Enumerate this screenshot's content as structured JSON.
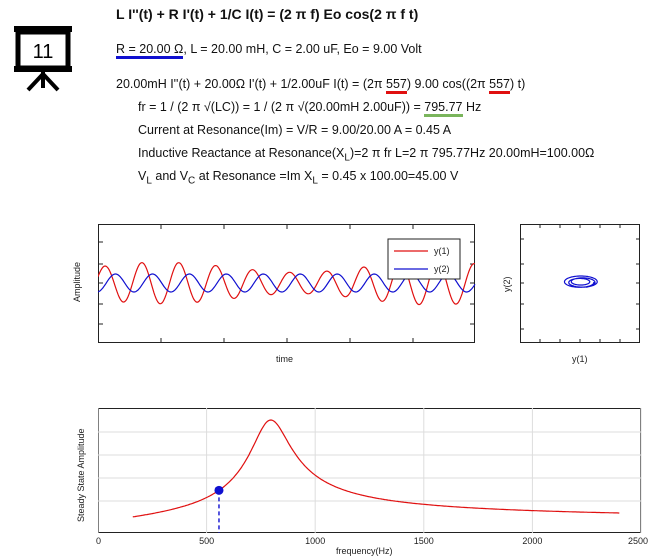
{
  "badge": {
    "number": "11",
    "icon": "presentation-board-icon"
  },
  "equation": {
    "title": "L I''(t) + R I'(t) + 1/C I(t) = (2 π f) Eo cos(2 π f t)",
    "params_underlined": "R = 20.00 Ω",
    "params_rest": ", L = 20.00 mH, C = 2.00 uF, Eo = 9.00 Volt",
    "ode_part1": "20.00mH I''(t) + 20.00Ω I'(t) + 1/2.00uF I(t) = (2π ",
    "ode_freq1": "557",
    "ode_part2": ") 9.00 cos((2π ",
    "ode_freq2": "557",
    "ode_part3": ") t)",
    "resonance_part1": "fr = 1 / (2 π √(LC)) = 1 / (2 π √(20.00mH 2.00uF)) = ",
    "resonance_value": "795.77",
    "resonance_unit": " Hz",
    "current_line": "Current at Resonance(Im) = V/R = 9.00/20.00 A = 0.45 A",
    "reactance_part1": "Inductive Reactance at Resonance(X",
    "reactance_sub": "L",
    "reactance_part2": ")=2 π fr L=2 π 795.77Hz 20.00mH=100.00Ω",
    "voltage_v": "V",
    "voltage_sub_l": "L",
    "voltage_and": " and V",
    "voltage_sub_c": "C",
    "voltage_mid": " at Resonance =Im X",
    "voltage_sub_l2": "L",
    "voltage_end": " = 0.45 x 100.00=45.00 V"
  },
  "colors": {
    "red": "#e01010",
    "blue": "#1010d0",
    "green": "#7ab55c"
  },
  "chart_data": [
    {
      "type": "line",
      "xlabel": "time",
      "ylabel": "Amplitude",
      "grid": false,
      "legend_placement": "top-right",
      "series": [
        {
          "name": "y(1)",
          "color": "#e01010"
        },
        {
          "name": "y(2)",
          "color": "#1010d0"
        }
      ]
    },
    {
      "type": "line",
      "xlabel": "y(1)",
      "ylabel": "y(2)",
      "grid": false
    },
    {
      "type": "line",
      "xlabel": "frequency(Hz)",
      "ylabel": "Steady State Amplitude",
      "grid": true,
      "x_ticks": [
        0,
        500,
        1000,
        1500,
        2000,
        2500
      ],
      "xlim": [
        0,
        2500
      ],
      "resonance_hz": 795.77,
      "marker_hz": 557,
      "curve_x": [
        160,
        2400
      ]
    }
  ]
}
